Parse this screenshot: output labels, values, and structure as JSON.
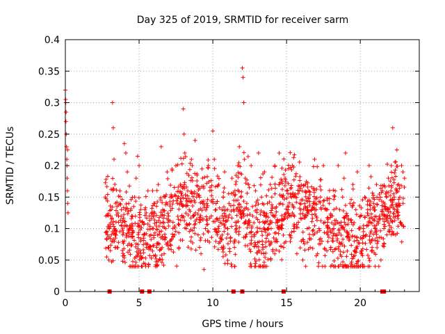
{
  "chart_data": {
    "type": "scatter",
    "title": "Day 325 of 2019, SRMTID for receiver sarm",
    "xlabel": "GPS time / hours",
    "ylabel": "SRMTID / TECUs",
    "xlim": [
      0,
      24
    ],
    "ylim": [
      0,
      0.4
    ],
    "x_ticks": [
      0,
      5,
      10,
      15,
      20
    ],
    "y_ticks": [
      0,
      0.05,
      0.1,
      0.15,
      0.2,
      0.25,
      0.3,
      0.35,
      0.4
    ],
    "x_tick_labels": [
      "0",
      "5",
      "10",
      "15",
      "20"
    ],
    "y_tick_labels": [
      "0",
      "0.05",
      "0.1",
      "0.15",
      "0.2",
      "0.25",
      "0.3",
      "0.35",
      "0.4"
    ],
    "grid": true,
    "marker": "+",
    "marker_color": "#ff0000",
    "series": [
      {
        "name": "SRMTID",
        "x": [
          0.0,
          0.02,
          0.04,
          0.06,
          0.08,
          0.1,
          0.12,
          0.14,
          0.16,
          0.18,
          0.05,
          0.03,
          0.15,
          0.11,
          2.7,
          2.75,
          2.8,
          2.85,
          2.9,
          2.95,
          3.0,
          3.05,
          3.1,
          3.15,
          3.2,
          3.25,
          3.3,
          3.35,
          3.4,
          3.5,
          3.6,
          3.7,
          3.8,
          3.9,
          4.0,
          4.1,
          4.2,
          4.3,
          4.4,
          4.5,
          4.6,
          4.7,
          4.8,
          4.9,
          5.0,
          5.1,
          5.2,
          5.3,
          5.4,
          5.5,
          5.6,
          5.7,
          5.8,
          5.9,
          6.0,
          6.1,
          6.2,
          6.3,
          6.4,
          6.5,
          6.6,
          6.7,
          6.8,
          6.9,
          7.0,
          7.1,
          7.2,
          7.3,
          7.4,
          7.5,
          7.6,
          7.7,
          7.8,
          7.9,
          8.0,
          8.05,
          8.1,
          8.2,
          8.3,
          8.4,
          8.5,
          8.6,
          8.7,
          8.8,
          8.9,
          9.0,
          9.1,
          9.2,
          9.3,
          9.4,
          9.5,
          9.6,
          9.7,
          9.8,
          9.9,
          10.0,
          10.1,
          10.2,
          10.3,
          10.4,
          10.5,
          10.6,
          10.7,
          10.8,
          10.9,
          11.0,
          11.1,
          11.2,
          11.3,
          11.4,
          11.5,
          11.6,
          11.7,
          11.8,
          11.9,
          12.0,
          12.05,
          12.1,
          12.15,
          12.2,
          12.3,
          12.4,
          12.5,
          12.6,
          12.7,
          12.8,
          12.9,
          13.0,
          13.1,
          13.2,
          13.3,
          13.4,
          13.5,
          13.6,
          13.7,
          13.8,
          13.9,
          14.0,
          14.1,
          14.2,
          14.3,
          14.4,
          14.5,
          14.6,
          14.7,
          14.8,
          14.9,
          15.0,
          15.1,
          15.2,
          15.3,
          15.4,
          15.5,
          15.6,
          15.7,
          15.8,
          15.9,
          16.0,
          16.1,
          16.2,
          16.3,
          16.4,
          16.5,
          16.6,
          16.7,
          16.8,
          16.9,
          17.0,
          17.1,
          17.2,
          17.3,
          17.4,
          17.5,
          17.6,
          17.7,
          17.8,
          17.9,
          18.0,
          18.1,
          18.2,
          18.3,
          18.4,
          18.5,
          18.6,
          18.7,
          18.8,
          18.9,
          19.0,
          19.1,
          19.2,
          19.3,
          19.4,
          19.5,
          19.6,
          19.7,
          19.8,
          19.9,
          20.0,
          20.1,
          20.2,
          20.3,
          20.4,
          20.5,
          20.6,
          20.7,
          20.8,
          20.9,
          21.0,
          21.1,
          21.2,
          21.3,
          21.4,
          21.5,
          21.6,
          21.7,
          21.8,
          21.9,
          22.0,
          22.1,
          22.2,
          22.3,
          22.4,
          22.5,
          22.6,
          22.7,
          22.8,
          22.9,
          23.0
        ],
        "y": [
          0.32,
          0.305,
          0.27,
          0.25,
          0.23,
          0.21,
          0.18,
          0.16,
          0.14,
          0.125,
          0.285,
          0.3,
          0.225,
          0.2,
          0.15,
          0.12,
          0.055,
          0.09,
          0.07,
          0.05,
          0.1,
          0.065,
          0.13,
          0.08,
          0.3,
          0.26,
          0.21,
          0.1,
          0.085,
          0.07,
          0.11,
          0.16,
          0.13,
          0.09,
          0.235,
          0.22,
          0.19,
          0.14,
          0.1,
          0.12,
          0.095,
          0.15,
          0.18,
          0.215,
          0.2,
          0.08,
          0.11,
          0.045,
          0.13,
          0.07,
          0.16,
          0.12,
          0.09,
          0.1,
          0.14,
          0.04,
          0.11,
          0.17,
          0.095,
          0.23,
          0.13,
          0.06,
          0.1,
          0.19,
          0.12,
          0.08,
          0.15,
          0.11,
          0.09,
          0.2,
          0.14,
          0.07,
          0.17,
          0.12,
          0.29,
          0.25,
          0.22,
          0.1,
          0.16,
          0.13,
          0.08,
          0.2,
          0.12,
          0.24,
          0.15,
          0.09,
          0.11,
          0.06,
          0.18,
          0.035,
          0.1,
          0.14,
          0.2,
          0.16,
          0.12,
          0.255,
          0.21,
          0.13,
          0.09,
          0.17,
          0.11,
          0.07,
          0.15,
          0.19,
          0.12,
          0.1,
          0.14,
          0.08,
          0.18,
          0.13,
          0.16,
          0.1,
          0.2,
          0.23,
          0.15,
          0.355,
          0.34,
          0.3,
          0.21,
          0.18,
          0.14,
          0.17,
          0.11,
          0.2,
          0.12,
          0.09,
          0.16,
          0.13,
          0.22,
          0.1,
          0.15,
          0.07,
          0.19,
          0.12,
          0.14,
          0.1,
          0.17,
          0.15,
          0.12,
          0.2,
          0.08,
          0.11,
          0.22,
          0.14,
          0.1,
          0.07,
          0.18,
          0.16,
          0.13,
          0.09,
          0.12,
          0.2,
          0.1,
          0.15,
          0.06,
          0.11,
          0.14,
          0.08,
          0.05,
          0.12,
          0.04,
          0.1,
          0.16,
          0.07,
          0.13,
          0.09,
          0.21,
          0.12,
          0.06,
          0.1,
          0.15,
          0.08,
          0.2,
          0.11,
          0.13,
          0.09,
          0.14,
          0.07,
          0.12,
          0.1,
          0.16,
          0.09,
          0.2,
          0.13,
          0.11,
          0.15,
          0.18,
          0.22,
          0.12,
          0.09,
          0.14,
          0.11,
          0.17,
          0.08,
          0.13,
          0.19,
          0.1,
          0.12,
          0.06,
          0.1,
          0.15,
          0.09,
          0.13,
          0.2,
          0.11,
          0.07,
          0.14,
          0.1,
          0.17,
          0.08,
          0.12,
          0.05,
          0.16,
          0.1,
          0.13,
          0.09,
          0.18,
          0.12,
          0.2,
          0.26,
          0.15,
          0.09,
          0.13,
          0.17,
          0.11,
          0.2,
          0.14,
          0.18
        ]
      }
    ],
    "data_gaps_x": [
      3.0,
      5.2,
      5.7,
      11.4,
      12.0,
      14.8,
      21.5,
      21.6
    ]
  }
}
